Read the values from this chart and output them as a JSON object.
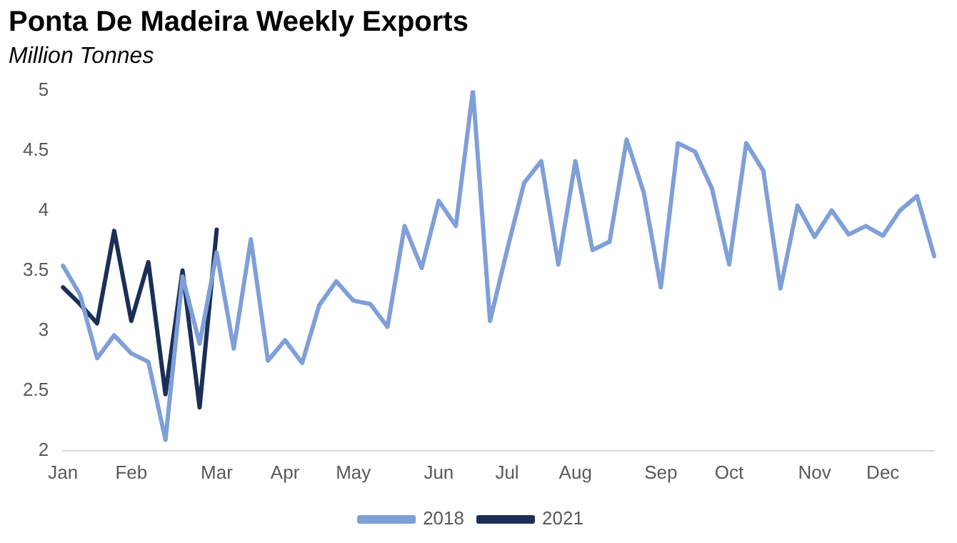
{
  "chart_data": {
    "type": "line",
    "title": "Ponta De Madeira Weekly Exports",
    "subtitle": "Million Tonnes",
    "categories": [
      "Jan",
      null,
      null,
      null,
      "Feb",
      null,
      null,
      null,
      null,
      "Mar",
      null,
      null,
      null,
      "Apr",
      null,
      null,
      null,
      "May",
      null,
      null,
      null,
      null,
      "Jun",
      null,
      null,
      null,
      "Jul",
      null,
      null,
      null,
      "Aug",
      null,
      null,
      null,
      null,
      "Sep",
      null,
      null,
      null,
      "Oct",
      null,
      null,
      null,
      null,
      "Nov",
      null,
      null,
      null,
      "Dec",
      null,
      null,
      null
    ],
    "series": [
      {
        "name": "2018",
        "color": "#7f9fd8",
        "values": [
          3.54,
          3.3,
          2.77,
          2.96,
          2.81,
          2.74,
          2.09,
          3.45,
          2.89,
          3.65,
          2.85,
          3.76,
          2.75,
          2.92,
          2.73,
          3.21,
          3.41,
          3.25,
          3.22,
          3.03,
          3.87,
          3.52,
          4.08,
          3.87,
          5.0,
          3.08,
          3.67,
          4.23,
          4.41,
          3.55,
          4.41,
          3.67,
          3.74,
          4.59,
          4.15,
          3.36,
          4.56,
          4.49,
          4.18,
          3.55,
          4.56,
          4.33,
          3.35,
          4.04,
          3.78,
          4.0,
          3.8,
          3.87,
          3.79,
          4.0,
          4.12,
          3.62
        ]
      },
      {
        "name": "2021",
        "color": "#1b2f57",
        "values": [
          3.36,
          3.22,
          3.06,
          3.83,
          3.08,
          3.57,
          2.47,
          3.5,
          2.36,
          3.84,
          null,
          null,
          null,
          null,
          null,
          null,
          null,
          null,
          null,
          null,
          null,
          null,
          null,
          null,
          null,
          null,
          null,
          null,
          null,
          null,
          null,
          null,
          null,
          null,
          null,
          null,
          null,
          null,
          null,
          null,
          null,
          null,
          null,
          null,
          null,
          null,
          null,
          null,
          null,
          null,
          null,
          null
        ]
      }
    ],
    "ylim": [
      2,
      5
    ],
    "yticks": [
      2,
      2.5,
      3,
      3.5,
      4,
      4.5,
      5
    ],
    "grid": false,
    "legend": "bottom",
    "marker": "none",
    "line_style": "solid"
  }
}
